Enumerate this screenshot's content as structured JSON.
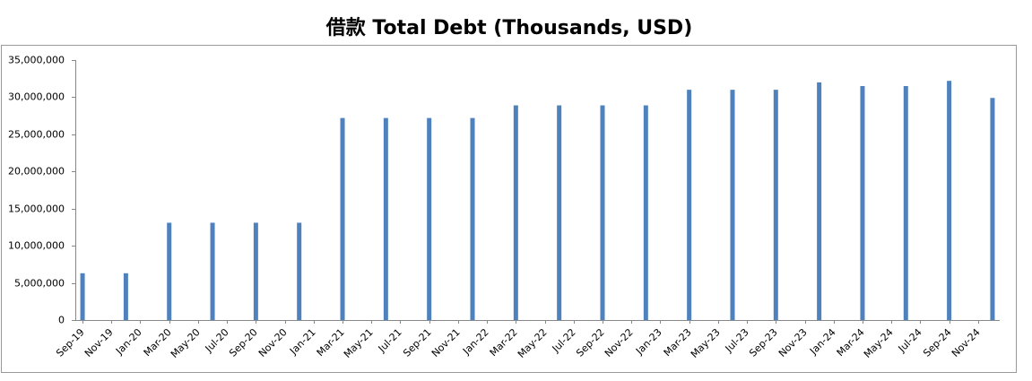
{
  "chart_data": {
    "type": "bar",
    "title": "借款 Total Debt (Thousands, USD)",
    "x": [
      "Sep-19",
      "Dec-19",
      "Mar-20",
      "Jun-20",
      "Sep-20",
      "Dec-20",
      "Mar-21",
      "Jun-21",
      "Sep-21",
      "Dec-21",
      "Mar-22",
      "Jun-22",
      "Sep-22",
      "Dec-22",
      "Mar-23",
      "Jun-23",
      "Sep-23",
      "Dec-23",
      "Mar-24",
      "Jun-24",
      "Sep-24",
      "Dec-24"
    ],
    "values": [
      6300000,
      6300000,
      13100000,
      13100000,
      13100000,
      13100000,
      27200000,
      27200000,
      27200000,
      27200000,
      28900000,
      28900000,
      28900000,
      28900000,
      31000000,
      31000000,
      31000000,
      32000000,
      31500000,
      31500000,
      32200000,
      29900000
    ],
    "color": "#4f81bd",
    "xlim": [
      "Sep-19",
      "Dec-24"
    ],
    "xticks": [
      "Sep-19",
      "Nov-19",
      "Jan-20",
      "Mar-20",
      "May-20",
      "Jul-20",
      "Sep-20",
      "Nov-20",
      "Jan-21",
      "Mar-21",
      "May-21",
      "Jul-21",
      "Sep-21",
      "Nov-21",
      "Jan-22",
      "Mar-22",
      "May-22",
      "Jul-22",
      "Sep-22",
      "Nov-22",
      "Jan-23",
      "Mar-23",
      "May-23",
      "Jul-23",
      "Sep-23",
      "Nov-23",
      "Jan-24",
      "Mar-24",
      "May-24",
      "Jul-24",
      "Sep-24",
      "Nov-24"
    ],
    "ylim": [
      0,
      35000000
    ],
    "yticks": [
      0,
      {
        "value": 5000000,
        "label": "5,000,000"
      },
      {
        "value": 10000000,
        "label": "10,000,000"
      },
      {
        "value": 15000000,
        "label": "15,000,000"
      },
      {
        "value": 20000000,
        "label": "20,000,000"
      },
      {
        "value": 25000000,
        "label": "25,000,000"
      },
      {
        "value": 30000000,
        "label": "30,000,000"
      },
      {
        "value": 35000000,
        "label": "35,000,000"
      }
    ],
    "grid": false
  }
}
